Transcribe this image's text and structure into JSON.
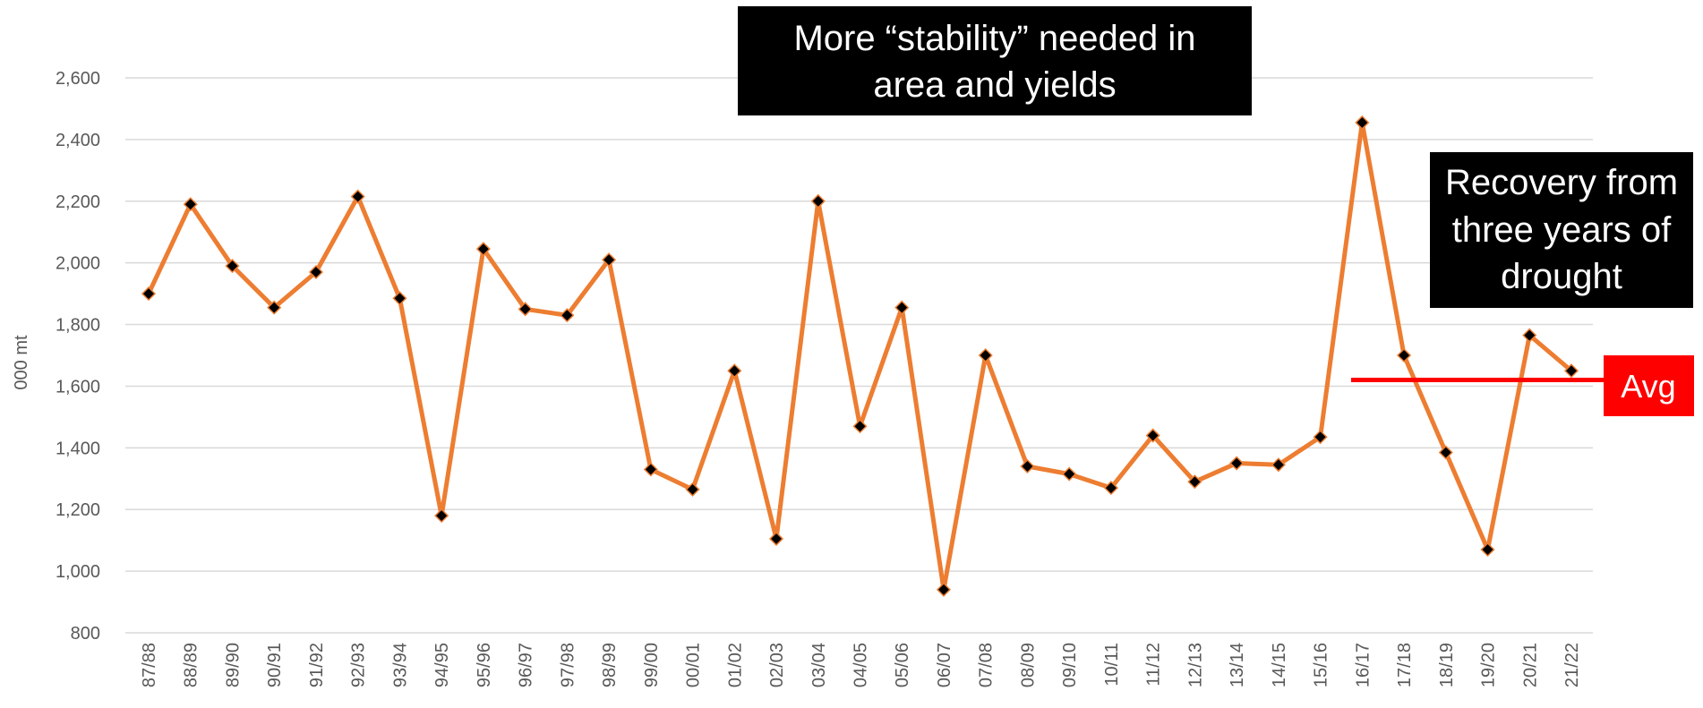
{
  "chart_data": {
    "type": "line",
    "ylabel": "000 mt",
    "ylim": [
      800,
      2600
    ],
    "y_ticks": [
      "800",
      "1,000",
      "1,200",
      "1,400",
      "1,600",
      "1,800",
      "2,000",
      "2,200",
      "2,400",
      "2,600"
    ],
    "grid": true,
    "categories": [
      "87/88",
      "88/89",
      "89/90",
      "90/91",
      "91/92",
      "92/93",
      "93/94",
      "94/95",
      "95/96",
      "96/97",
      "97/98",
      "98/99",
      "99/00",
      "00/01",
      "01/02",
      "02/03",
      "03/04",
      "04/05",
      "05/06",
      "06/07",
      "07/08",
      "08/09",
      "09/10",
      "10/11",
      "11/12",
      "12/13",
      "13/14",
      "14/15",
      "15/16",
      "16/17",
      "17/18",
      "18/19",
      "19/20",
      "20/21",
      "21/22"
    ],
    "series": [
      {
        "values": [
          1900,
          2190,
          1990,
          1855,
          1970,
          2215,
          1885,
          1180,
          2045,
          1850,
          1830,
          2010,
          1330,
          1265,
          1650,
          1105,
          2200,
          1470,
          1855,
          940,
          1700,
          1340,
          1315,
          1270,
          1440,
          1290,
          1350,
          1345,
          1435,
          2455,
          1700,
          1385,
          1070,
          1765,
          1650
        ],
        "color": "#ED7D31",
        "marker_color": "#000000"
      }
    ],
    "average": {
      "label": "Avg",
      "value": 1620,
      "color": "#FF0000"
    },
    "annotations": [
      {
        "text_lines": [
          "More “stability” needed in",
          "area and yields"
        ],
        "background": "#000000",
        "color": "#ffffff"
      },
      {
        "text_lines": [
          "Recovery from",
          "three years of",
          "drought"
        ],
        "background": "#000000",
        "color": "#ffffff"
      }
    ]
  }
}
